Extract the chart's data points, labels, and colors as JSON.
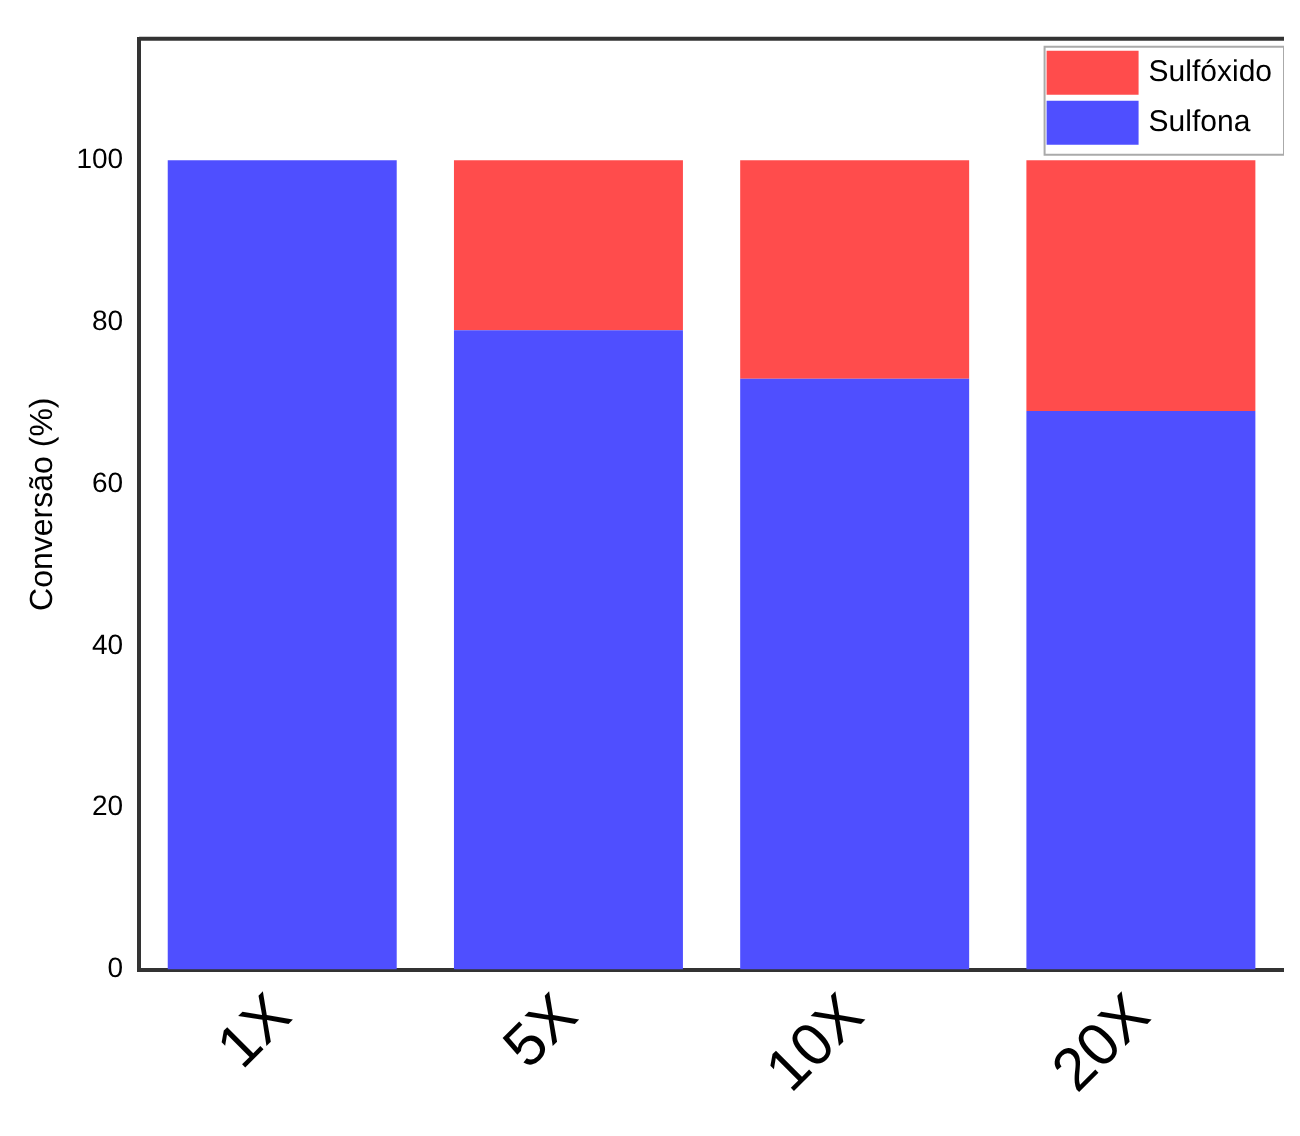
{
  "chart_data": {
    "type": "bar",
    "stacked": true,
    "ylabel": "Conversão (%)",
    "categories": [
      "1X",
      "5X",
      "10X",
      "20X"
    ],
    "series": [
      {
        "name": "Sulfona",
        "color": "#4f4fff",
        "values": [
          100,
          79,
          73,
          69
        ]
      },
      {
        "name": "Sulfóxido",
        "color": "#ff4c4c",
        "values": [
          0,
          21,
          27,
          31
        ]
      }
    ],
    "ylim": [
      0,
      115
    ],
    "yticks": [
      0,
      20,
      40,
      60,
      80,
      100
    ],
    "grid": false,
    "legend": "top right"
  }
}
